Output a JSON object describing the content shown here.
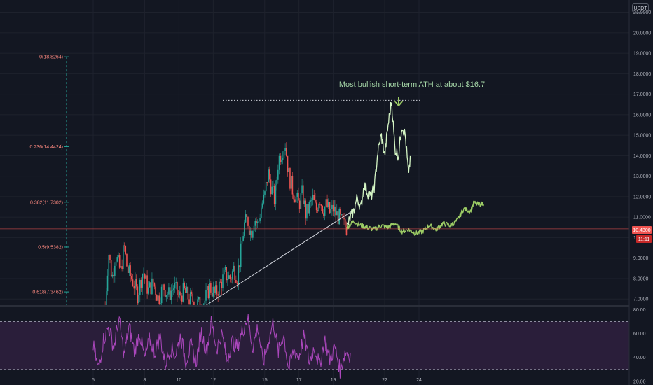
{
  "currency": "USDT",
  "annotation": "Most bullish short-term ATH at about $16.7",
  "price_badge": {
    "value": "10.4300",
    "countdown": "11:11"
  },
  "colors": {
    "background": "#131722",
    "grid": "#1e222d",
    "candle_up": "#26a69a",
    "candle_down": "#ef5350",
    "projection": "#d4f5c4",
    "projection_alt": "#9ccc65",
    "rsi": "#ab47bc",
    "rsi_band": "#2a1e3a",
    "trendline": "#d1d4dc",
    "fib_line": "#26a69a",
    "fib_text": "#ff8a80",
    "price_line": "#ef5350",
    "arrow": "#9ccc65"
  },
  "chart_data": {
    "type": "candlestick",
    "price_axis": {
      "ticks": [
        "21.0000",
        "20.0000",
        "19.0000",
        "18.0000",
        "17.0000",
        "16.0000",
        "15.0000",
        "14.0000",
        "13.0000",
        "12.0000",
        "11.0000",
        "10.0000",
        "9.0000",
        "8.0000",
        "7.0000"
      ],
      "ylim": [
        6.7,
        21.6
      ]
    },
    "rsi_axis": {
      "ticks": [
        "80.00",
        "60.00",
        "40.00",
        "20.00"
      ],
      "ylim": [
        17,
        82
      ],
      "band": [
        30,
        70
      ]
    },
    "x_ticks": [
      "5",
      "8",
      "10",
      "12",
      "15",
      "17",
      "19",
      "22",
      "24"
    ],
    "fib_levels": [
      {
        "label": "0(18.8264)",
        "value": 18.8264
      },
      {
        "label": "0.236(14.4424)",
        "value": 14.4424
      },
      {
        "label": "0.382(11.7302)",
        "value": 11.7302
      },
      {
        "label": "0.5(9.5382)",
        "value": 9.5382
      },
      {
        "label": "0.618(7.3462)",
        "value": 7.3462
      }
    ],
    "ath_level": 16.7,
    "current_price": 10.43,
    "trendline": {
      "from": [
        11.6,
        6.7
      ],
      "to": [
        20.3,
        11.4
      ]
    },
    "price_path": [
      [
        5.7,
        6.7
      ],
      [
        5.9,
        9.3
      ],
      [
        6.1,
        8.0
      ],
      [
        6.3,
        9.2
      ],
      [
        6.6,
        8.3
      ],
      [
        6.8,
        9.6
      ],
      [
        7.0,
        8.4
      ],
      [
        7.3,
        7.9
      ],
      [
        7.6,
        7.2
      ],
      [
        7.9,
        8.4
      ],
      [
        8.2,
        7.4
      ],
      [
        8.5,
        7.8
      ],
      [
        8.8,
        7.0
      ],
      [
        9.1,
        7.6
      ],
      [
        9.4,
        7.2
      ],
      [
        9.7,
        7.6
      ],
      [
        10.0,
        7.1
      ],
      [
        10.3,
        7.4
      ],
      [
        10.6,
        7.0
      ],
      [
        10.9,
        6.9
      ],
      [
        11.2,
        6.7
      ],
      [
        11.5,
        6.9
      ],
      [
        11.8,
        7.6
      ],
      [
        12.1,
        7.2
      ],
      [
        12.4,
        7.7
      ],
      [
        12.7,
        8.2
      ],
      [
        13.0,
        8.0
      ],
      [
        13.2,
        8.5
      ],
      [
        13.4,
        8.1
      ],
      [
        13.6,
        9.2
      ],
      [
        13.8,
        10.6
      ],
      [
        14.0,
        10.9
      ],
      [
        14.2,
        10.2
      ],
      [
        14.4,
        11.0
      ],
      [
        14.6,
        10.6
      ],
      [
        14.8,
        11.5
      ],
      [
        15.0,
        12.0
      ],
      [
        15.2,
        13.2
      ],
      [
        15.4,
        12.4
      ],
      [
        15.6,
        11.8
      ],
      [
        15.8,
        13.8
      ],
      [
        16.0,
        14.2
      ],
      [
        16.2,
        14.6
      ],
      [
        16.4,
        13.1
      ],
      [
        16.6,
        12.4
      ],
      [
        16.8,
        12.0
      ],
      [
        17.0,
        11.6
      ],
      [
        17.2,
        12.2
      ],
      [
        17.4,
        11.1
      ],
      [
        17.6,
        11.5
      ],
      [
        17.8,
        11.9
      ],
      [
        18.0,
        11.3
      ],
      [
        18.2,
        12.0
      ],
      [
        18.4,
        11.4
      ],
      [
        18.6,
        11.6
      ],
      [
        18.8,
        11.2
      ],
      [
        19.0,
        11.4
      ],
      [
        19.2,
        11.1
      ],
      [
        19.4,
        10.9
      ],
      [
        19.6,
        10.6
      ],
      [
        19.8,
        10.5
      ]
    ],
    "projection_bullish": [
      [
        19.8,
        10.5
      ],
      [
        20.0,
        11.0
      ],
      [
        20.2,
        11.3
      ],
      [
        20.4,
        12.0
      ],
      [
        20.6,
        11.4
      ],
      [
        20.8,
        12.6
      ],
      [
        21.0,
        12.2
      ],
      [
        21.2,
        12.0
      ],
      [
        21.4,
        12.5
      ],
      [
        21.6,
        14.2
      ],
      [
        21.8,
        15.0
      ],
      [
        22.0,
        14.0
      ],
      [
        22.2,
        15.5
      ],
      [
        22.4,
        16.7
      ],
      [
        22.6,
        14.3
      ],
      [
        22.8,
        14.0
      ],
      [
        23.0,
        15.5
      ],
      [
        23.2,
        15.0
      ],
      [
        23.4,
        13.0
      ],
      [
        23.5,
        14.0
      ]
    ],
    "projection_base": [
      [
        19.8,
        10.5
      ],
      [
        20.2,
        10.8
      ],
      [
        20.6,
        10.6
      ],
      [
        21.0,
        10.5
      ],
      [
        21.4,
        10.4
      ],
      [
        21.8,
        10.6
      ],
      [
        22.2,
        10.5
      ],
      [
        22.6,
        10.7
      ],
      [
        23.0,
        10.3
      ],
      [
        23.4,
        10.4
      ],
      [
        23.8,
        10.2
      ],
      [
        24.2,
        10.3
      ],
      [
        24.6,
        10.6
      ],
      [
        25.0,
        10.4
      ],
      [
        25.4,
        10.7
      ],
      [
        25.8,
        10.6
      ],
      [
        26.2,
        10.8
      ],
      [
        26.6,
        11.4
      ],
      [
        27.0,
        11.3
      ],
      [
        27.2,
        11.7
      ],
      [
        27.5,
        11.6
      ],
      [
        27.8,
        11.7
      ]
    ],
    "rsi_path": [
      [
        5.0,
        50
      ],
      [
        5.3,
        30
      ],
      [
        5.6,
        55
      ],
      [
        5.9,
        66
      ],
      [
        6.2,
        48
      ],
      [
        6.5,
        72
      ],
      [
        6.8,
        42
      ],
      [
        7.1,
        66
      ],
      [
        7.4,
        45
      ],
      [
        7.7,
        61
      ],
      [
        8.0,
        39
      ],
      [
        8.3,
        55
      ],
      [
        8.6,
        44
      ],
      [
        8.9,
        58
      ],
      [
        9.2,
        34
      ],
      [
        9.5,
        48
      ],
      [
        9.8,
        42
      ],
      [
        10.1,
        58
      ],
      [
        10.4,
        37
      ],
      [
        10.7,
        50
      ],
      [
        11.0,
        36
      ],
      [
        11.3,
        62
      ],
      [
        11.6,
        45
      ],
      [
        11.9,
        70
      ],
      [
        12.2,
        47
      ],
      [
        12.5,
        60
      ],
      [
        12.8,
        38
      ],
      [
        13.1,
        53
      ],
      [
        13.4,
        49
      ],
      [
        13.7,
        62
      ],
      [
        14.0,
        74
      ],
      [
        14.3,
        48
      ],
      [
        14.6,
        66
      ],
      [
        14.9,
        35
      ],
      [
        15.2,
        52
      ],
      [
        15.5,
        70
      ],
      [
        15.8,
        44
      ],
      [
        16.1,
        60
      ],
      [
        16.4,
        30
      ],
      [
        16.7,
        46
      ],
      [
        17.0,
        41
      ],
      [
        17.3,
        58
      ],
      [
        17.6,
        36
      ],
      [
        17.9,
        49
      ],
      [
        18.2,
        33
      ],
      [
        18.5,
        55
      ],
      [
        18.8,
        38
      ],
      [
        19.1,
        49
      ],
      [
        19.4,
        29
      ],
      [
        19.7,
        45
      ],
      [
        20.0,
        42
      ]
    ]
  }
}
